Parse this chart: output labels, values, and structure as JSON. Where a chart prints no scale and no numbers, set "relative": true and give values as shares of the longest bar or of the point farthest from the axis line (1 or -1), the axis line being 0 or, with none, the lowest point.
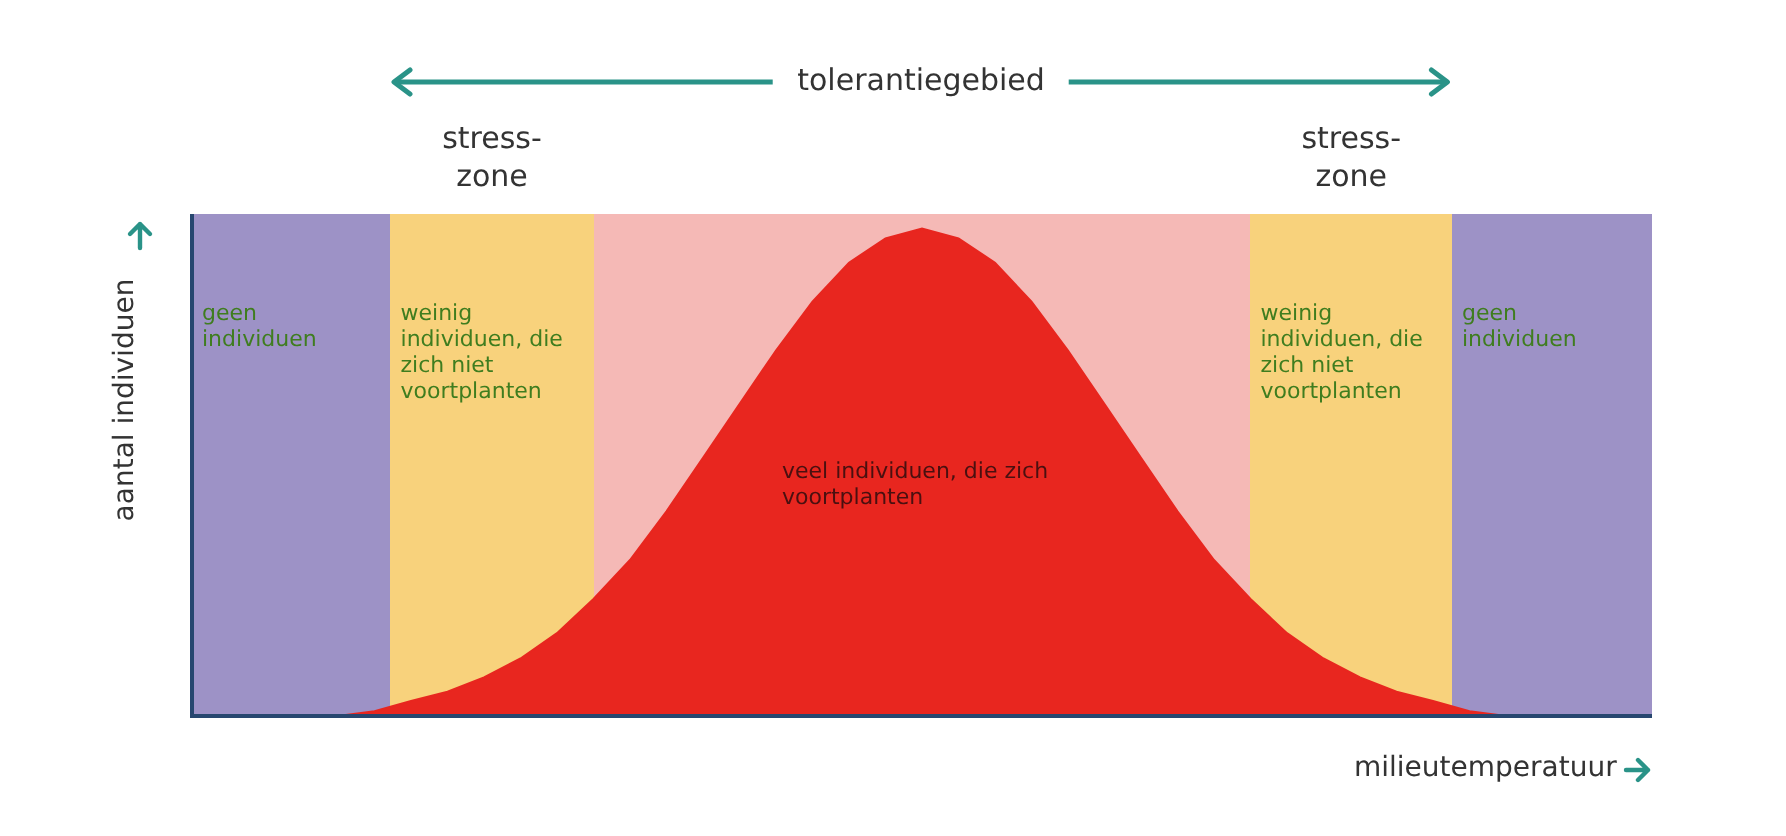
{
  "chart_data": {
    "type": "area",
    "relative": true,
    "xlabel": "milieutemperatuur",
    "ylabel": "aantal individuen",
    "legend": false,
    "categories": [
      null,
      null,
      null,
      null,
      null,
      null,
      null,
      null,
      null,
      null,
      null,
      null,
      null,
      null,
      null,
      null,
      null,
      null,
      null,
      null,
      null,
      null,
      null,
      null,
      null,
      null,
      null,
      null,
      null,
      null,
      null,
      null,
      null,
      null,
      null,
      null,
      null,
      null,
      null,
      null,
      null
    ],
    "series": [
      {
        "color": "#e8261f",
        "values": [
          0,
          0,
          0,
          0,
          0,
          0.01,
          0.031,
          0.05,
          0.079,
          0.118,
          0.17,
          0.24,
          0.32,
          0.42,
          0.53,
          0.64,
          0.75,
          0.85,
          0.93,
          0.98,
          1,
          0.98,
          0.93,
          0.85,
          0.75,
          0.64,
          0.53,
          0.42,
          0.32,
          0.24,
          0.17,
          0.118,
          0.079,
          0.05,
          0.031,
          0.01,
          0,
          0,
          0,
          0,
          0
        ]
      }
    ],
    "annotations": [
      "tolerantiegebied",
      "stress- zone",
      "stress- zone",
      "geen individuen",
      "weinig individuen, die zich niet voortplanten",
      "veel individuen, die zich voortplanten",
      "weinig individuen, die zich niet voortplanten",
      "geen individuen"
    ]
  }
}
